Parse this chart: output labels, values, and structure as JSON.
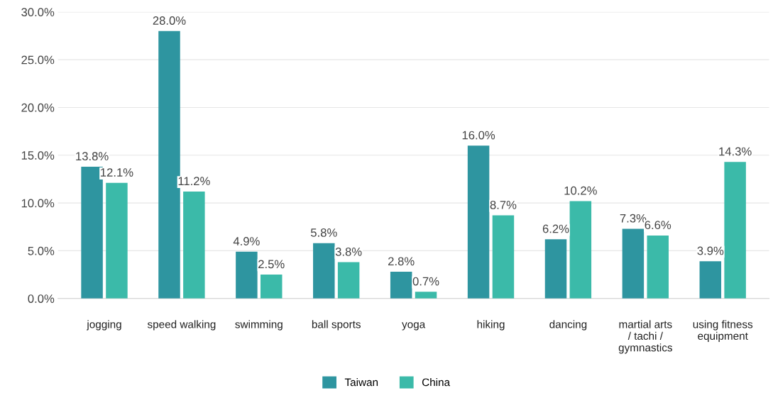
{
  "chart_data": {
    "type": "bar",
    "categories": [
      "jogging",
      "speed walking",
      "swimming",
      "ball sports",
      "yoga",
      "hiking",
      "dancing",
      "martial arts\n/ tachi /\ngymnastics",
      "using fitness\nequipment"
    ],
    "series": [
      {
        "name": "Taiwan",
        "color": "#2e95a0",
        "values": [
          13.8,
          28.0,
          4.9,
          5.8,
          2.8,
          16.0,
          6.2,
          7.3,
          3.9
        ],
        "value_labels": [
          "13.8%",
          "28.0%",
          "4.9%",
          "5.8%",
          "2.8%",
          "16.0%",
          "6.2%",
          "7.3%",
          "3.9%"
        ]
      },
      {
        "name": "China",
        "color": "#3bbaa9",
        "values": [
          12.1,
          11.2,
          2.5,
          3.8,
          0.7,
          8.7,
          10.2,
          6.6,
          14.3
        ],
        "value_labels": [
          "12.1%",
          "11.2%",
          "2.5%",
          "3.8%",
          "0.7%",
          "8.7%",
          "10.2%",
          "6.6%",
          "14.3%"
        ]
      }
    ],
    "ylim": [
      0,
      30
    ],
    "yticks": [
      {
        "value": 0,
        "label": "0.0%"
      },
      {
        "value": 5,
        "label": "5.0%"
      },
      {
        "value": 10,
        "label": "10.0%"
      },
      {
        "value": 15,
        "label": "15.0%"
      },
      {
        "value": 20,
        "label": "20.0%"
      },
      {
        "value": 25,
        "label": "25.0%"
      },
      {
        "value": 30,
        "label": "30.0%"
      }
    ],
    "grid": "y",
    "legend": "bottom"
  }
}
